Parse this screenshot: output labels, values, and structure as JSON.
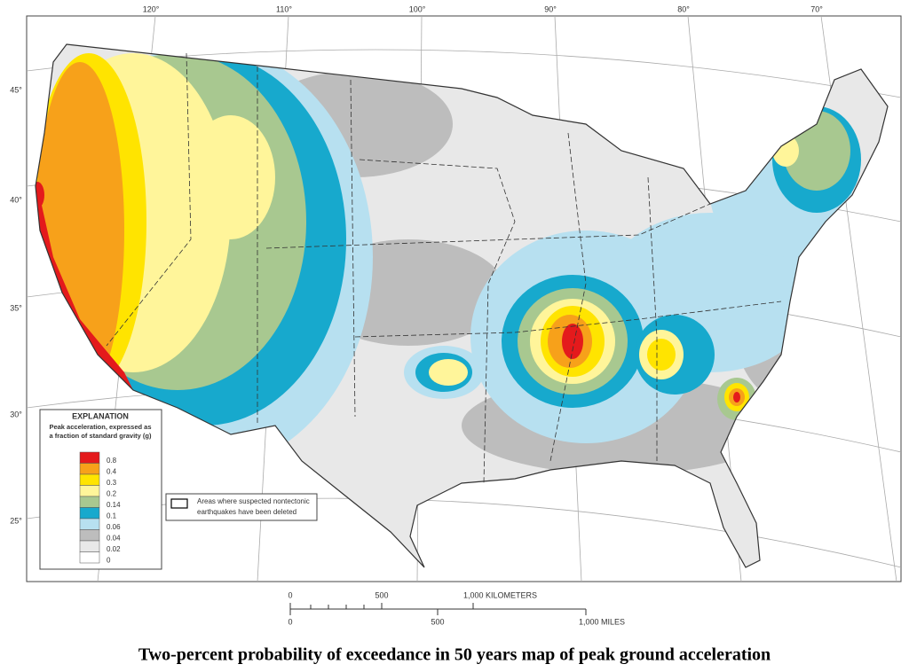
{
  "map": {
    "longitude_labels": [
      "120°",
      "110°",
      "100°",
      "90°",
      "80°",
      "70°"
    ],
    "latitude_labels": [
      "45°",
      "40°",
      "35°",
      "30°",
      "25°"
    ]
  },
  "legend": {
    "title": "EXPLANATION",
    "subtitle": [
      "Peak acceleration, expressed as",
      "a fraction of standard gravity (g)"
    ],
    "items": [
      {
        "value": 0.8,
        "color": "#e41a1c"
      },
      {
        "value": 0.4,
        "color": "#f7a11a"
      },
      {
        "value": 0.3,
        "color": "#ffe400"
      },
      {
        "value": 0.2,
        "color": "#fff59a"
      },
      {
        "value": 0.14,
        "color": "#a8c890"
      },
      {
        "value": 0.1,
        "color": "#17a9cd"
      },
      {
        "value": 0.06,
        "color": "#b7e0f0"
      },
      {
        "value": 0.04,
        "color": "#bdbdbd"
      },
      {
        "value": 0.02,
        "color": "#e8e8e8"
      },
      {
        "value": 0,
        "color": "#ffffff"
      }
    ]
  },
  "note": [
    "Areas where suspected nontectonic",
    "earthquakes have been deleted"
  ],
  "scale": {
    "kilometers": [
      "0",
      "500",
      "1,000 KILOMETERS"
    ],
    "miles": [
      "0",
      "500",
      "1,000 MILES"
    ]
  },
  "caption": "Two-percent probability of exceedance in 50 years map of peak ground acceleration"
}
